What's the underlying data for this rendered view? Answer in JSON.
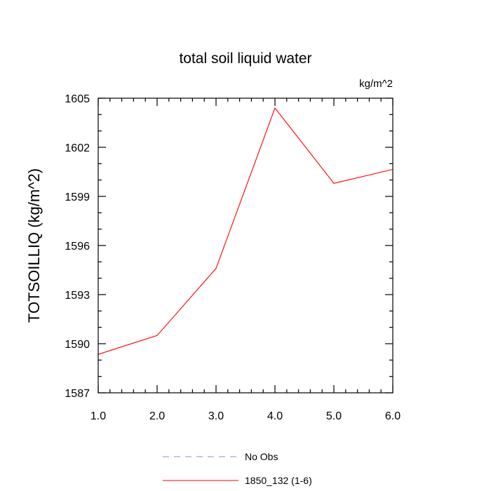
{
  "chart_data": {
    "type": "line",
    "title": "total soil liquid water",
    "units_label": "kg/m^2",
    "ylabel": "TOTSOILLIQ  (kg/m^2)",
    "xlabel": "",
    "xlim": [
      1.0,
      6.0
    ],
    "ylim": [
      1587,
      1605
    ],
    "x_ticks": [
      1.0,
      2.0,
      3.0,
      4.0,
      5.0,
      6.0
    ],
    "x_tick_labels": [
      "1.0",
      "2.0",
      "3.0",
      "4.0",
      "5.0",
      "6.0"
    ],
    "y_ticks": [
      1587,
      1590,
      1593,
      1596,
      1599,
      1602,
      1605
    ],
    "y_tick_labels": [
      "1587",
      "1590",
      "1593",
      "1596",
      "1599",
      "1602",
      "1605"
    ],
    "x_minor_step": 0.2,
    "y_minor_step": 1,
    "grid": false,
    "legend_position": "bottom-center",
    "series": [
      {
        "name": "No Obs",
        "color": "#8a8ae0",
        "style": "dashed",
        "x": [],
        "values": []
      },
      {
        "name": "1850_132 (1-6)",
        "color": "#ff0000",
        "style": "solid",
        "x": [
          1,
          2,
          3,
          4,
          5,
          6
        ],
        "values": [
          1589.35,
          1590.5,
          1594.6,
          1604.4,
          1599.8,
          1600.65
        ]
      }
    ]
  }
}
